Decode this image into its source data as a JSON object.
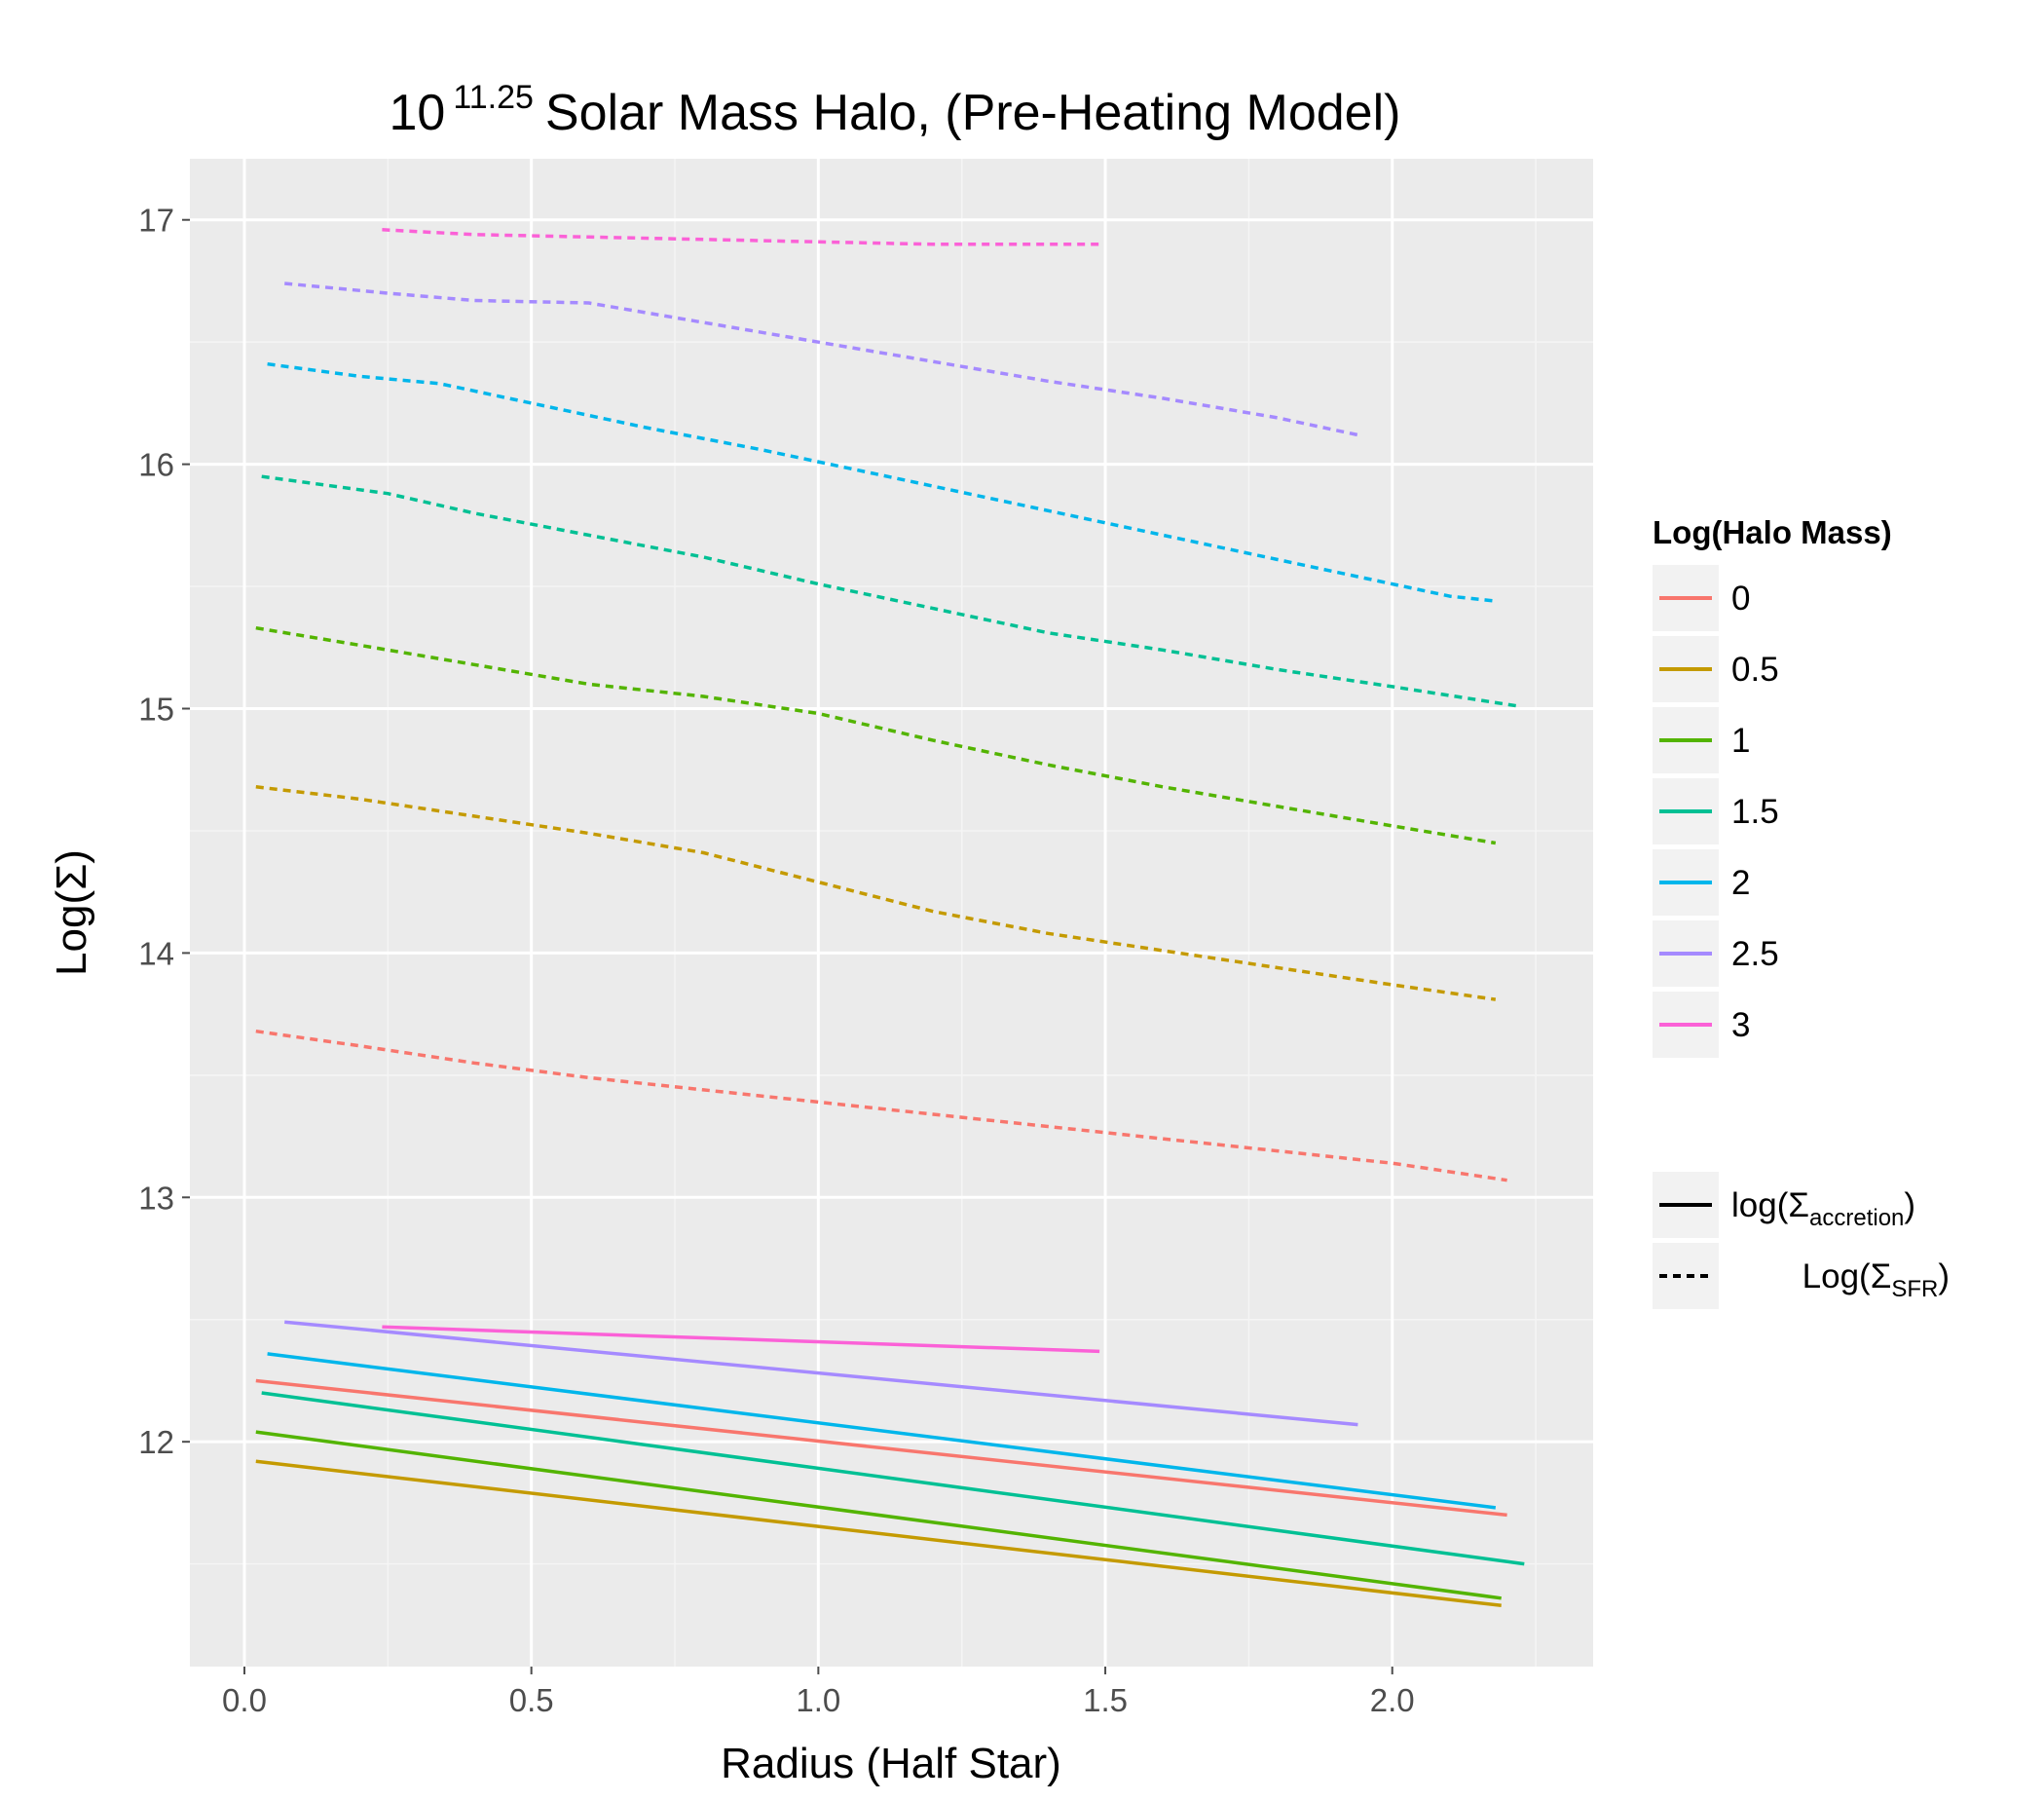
{
  "chart_data": {
    "type": "line",
    "title": {
      "prefix": "10",
      "superscript": "11.25",
      "main": "Solar Mass Halo, (Pre-Heating Model)"
    },
    "xlabel": "Radius (Half Star)",
    "ylabel": "Log(Σ)",
    "xlim": [
      -0.095,
      2.35
    ],
    "ylim": [
      11.08,
      17.25
    ],
    "x_ticks": [
      {
        "value": 0.0,
        "label": "0.0"
      },
      {
        "value": 0.5,
        "label": "0.5"
      },
      {
        "value": 1.0,
        "label": "1.0"
      },
      {
        "value": 1.5,
        "label": "1.5"
      },
      {
        "value": 2.0,
        "label": "2.0"
      }
    ],
    "y_ticks": [
      {
        "value": 12,
        "label": "12"
      },
      {
        "value": 13,
        "label": "13"
      },
      {
        "value": 14,
        "label": "14"
      },
      {
        "value": 15,
        "label": "15"
      },
      {
        "value": 16,
        "label": "16"
      },
      {
        "value": 17,
        "label": "17"
      }
    ],
    "grid": true,
    "legend_position": "right",
    "color_legend": {
      "title": "Log(Halo Mass)",
      "entries": [
        {
          "label": "0",
          "color": "#F8766D"
        },
        {
          "label": "0.5",
          "color": "#C49A00"
        },
        {
          "label": "1",
          "color": "#53B400"
        },
        {
          "label": "1.5",
          "color": "#00C094"
        },
        {
          "label": "2",
          "color": "#00B6EB"
        },
        {
          "label": "2.5",
          "color": "#A58AFF"
        },
        {
          "label": "3",
          "color": "#FB61D7"
        }
      ]
    },
    "linetype_legend": {
      "entries": [
        {
          "style": "solid",
          "label_prefix": "log(Σ",
          "label_sub": "accretion",
          "label_suffix": ")"
        },
        {
          "style": "dashed",
          "label_prefix": "Log(Σ",
          "label_sub": "SFR",
          "label_suffix": ")"
        }
      ]
    },
    "series": [
      {
        "group": "0",
        "style": "dashed",
        "color": "#F8766D",
        "x": [
          0.02,
          0.2,
          0.4,
          0.6,
          0.8,
          1.0,
          1.2,
          1.4,
          1.6,
          1.8,
          2.0,
          2.2
        ],
        "y": [
          13.68,
          13.62,
          13.55,
          13.49,
          13.44,
          13.39,
          13.34,
          13.29,
          13.24,
          13.19,
          13.14,
          13.07
        ]
      },
      {
        "group": "0.5",
        "style": "dashed",
        "color": "#C49A00",
        "x": [
          0.02,
          0.2,
          0.4,
          0.6,
          0.8,
          0.95,
          1.0,
          1.2,
          1.4,
          1.6,
          1.8,
          2.0,
          2.18
        ],
        "y": [
          14.68,
          14.63,
          14.56,
          14.49,
          14.41,
          14.32,
          14.29,
          14.17,
          14.08,
          14.01,
          13.94,
          13.87,
          13.81
        ]
      },
      {
        "group": "1",
        "style": "dashed",
        "color": "#53B400",
        "x": [
          0.02,
          0.2,
          0.4,
          0.6,
          0.8,
          1.0,
          1.2,
          1.4,
          1.6,
          1.8,
          2.0,
          2.18
        ],
        "y": [
          15.33,
          15.26,
          15.18,
          15.1,
          15.05,
          14.98,
          14.87,
          14.77,
          14.68,
          14.6,
          14.52,
          14.45
        ]
      },
      {
        "group": "1.5",
        "style": "dashed",
        "color": "#00C094",
        "x": [
          0.03,
          0.25,
          0.4,
          0.6,
          0.8,
          1.0,
          1.2,
          1.4,
          1.6,
          1.8,
          2.0,
          2.22
        ],
        "y": [
          15.95,
          15.88,
          15.8,
          15.71,
          15.62,
          15.51,
          15.41,
          15.31,
          15.24,
          15.16,
          15.09,
          15.01
        ]
      },
      {
        "group": "2",
        "style": "dashed",
        "color": "#00B6EB",
        "x": [
          0.04,
          0.2,
          0.34,
          0.5,
          0.7,
          0.9,
          1.1,
          1.3,
          1.5,
          1.7,
          1.9,
          2.1,
          2.18
        ],
        "y": [
          16.41,
          16.36,
          16.33,
          16.25,
          16.15,
          16.06,
          15.96,
          15.86,
          15.76,
          15.66,
          15.56,
          15.46,
          15.44
        ]
      },
      {
        "group": "2.5",
        "style": "dashed",
        "color": "#A58AFF",
        "x": [
          0.07,
          0.25,
          0.4,
          0.6,
          0.8,
          1.0,
          1.2,
          1.4,
          1.6,
          1.8,
          1.94
        ],
        "y": [
          16.74,
          16.7,
          16.67,
          16.66,
          16.58,
          16.5,
          16.42,
          16.34,
          16.27,
          16.19,
          16.12
        ]
      },
      {
        "group": "3",
        "style": "dashed",
        "color": "#FB61D7",
        "x": [
          0.24,
          0.4,
          0.6,
          0.8,
          1.0,
          1.2,
          1.4,
          1.49
        ],
        "y": [
          16.96,
          16.94,
          16.93,
          16.92,
          16.91,
          16.9,
          16.9,
          16.9
        ]
      },
      {
        "group": "0",
        "style": "solid",
        "color": "#F8766D",
        "x": [
          0.02,
          2.2
        ],
        "y": [
          12.25,
          11.7
        ]
      },
      {
        "group": "0.5",
        "style": "solid",
        "color": "#C49A00",
        "x": [
          0.02,
          2.19
        ],
        "y": [
          11.92,
          11.33
        ]
      },
      {
        "group": "1",
        "style": "solid",
        "color": "#53B400",
        "x": [
          0.02,
          2.19
        ],
        "y": [
          12.04,
          11.36
        ]
      },
      {
        "group": "1.5",
        "style": "solid",
        "color": "#00C094",
        "x": [
          0.03,
          2.23
        ],
        "y": [
          12.2,
          11.5
        ]
      },
      {
        "group": "2",
        "style": "solid",
        "color": "#00B6EB",
        "x": [
          0.04,
          2.18
        ],
        "y": [
          12.36,
          11.73
        ]
      },
      {
        "group": "2.5",
        "style": "solid",
        "color": "#A58AFF",
        "x": [
          0.07,
          1.94
        ],
        "y": [
          12.49,
          12.07
        ]
      },
      {
        "group": "3",
        "style": "solid",
        "color": "#FB61D7",
        "x": [
          0.24,
          1.49
        ],
        "y": [
          12.47,
          12.37
        ]
      }
    ]
  }
}
